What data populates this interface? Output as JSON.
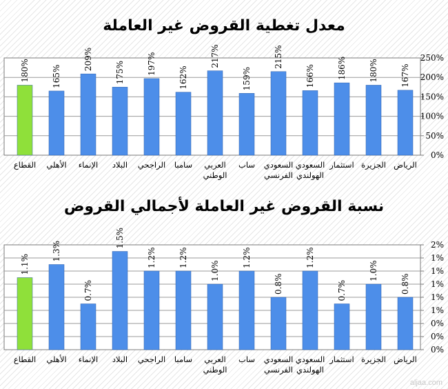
{
  "watermark": "aljaa.com",
  "chart_data": [
    {
      "type": "bar",
      "title": "معدل تغطية القروض غير العاملة",
      "categories": [
        "القطاع",
        "الأهلي",
        "الإنماء",
        "البلاد",
        "الراجحي",
        "سامبا",
        "العربي الوطني",
        "ساب",
        "السعودي الفرنسي",
        "السعودي الهولندي",
        "استثمار",
        "الجزيرة",
        "الرياض"
      ],
      "values": [
        180,
        165,
        209,
        175,
        197,
        162,
        217,
        159,
        215,
        166,
        186,
        180,
        167
      ],
      "value_labels": [
        "180%",
        "165%",
        "209%",
        "175%",
        "197%",
        "162%",
        "217%",
        "159%",
        "215%",
        "166%",
        "186%",
        "180%",
        "167%"
      ],
      "ylim": [
        0,
        250
      ],
      "yticks": [
        "0%",
        "50%",
        "100%",
        "150%",
        "200%",
        "250%"
      ],
      "colors": {
        "highlight": "#8fe03a",
        "bar": "#4d8ee9"
      },
      "grid": true
    },
    {
      "type": "bar",
      "title": "نسبة القروض غير العاملة لأجمالي القروض",
      "categories": [
        "القطاع",
        "الأهلي",
        "الإنماء",
        "البلاد",
        "الراجحي",
        "سامبا",
        "العربي الوطني",
        "ساب",
        "السعودي الفرنسي",
        "السعودي الهولندي",
        "استثمار",
        "الجزيرة",
        "الرياض"
      ],
      "values": [
        1.1,
        1.3,
        0.7,
        1.5,
        1.2,
        1.2,
        1.0,
        1.2,
        0.8,
        1.2,
        0.7,
        1.0,
        0.8
      ],
      "value_labels": [
        "1.1%",
        "1.3%",
        "0.7%",
        "1.5%",
        "1.2%",
        "1.2%",
        "1.0%",
        "1.2%",
        "0.8%",
        "1.2%",
        "0.7%",
        "1.0%",
        "0.8%"
      ],
      "ylim": [
        0,
        1.6
      ],
      "yticks": [
        "0%",
        "0%",
        "0%",
        "1%",
        "1%",
        "1%",
        "1%",
        "1%",
        "2%"
      ],
      "colors": {
        "highlight": "#8fe03a",
        "bar": "#4d8ee9"
      },
      "grid": true
    }
  ]
}
